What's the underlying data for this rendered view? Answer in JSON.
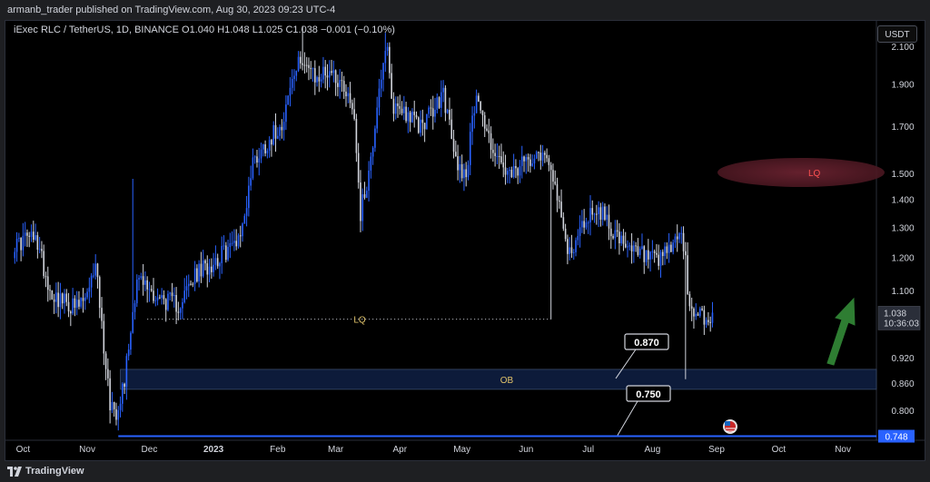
{
  "header": {
    "publisher": "armanb_trader published on TradingView.com, Aug 30, 2023 09:23 UTC-4"
  },
  "symbol_bar": {
    "title": "iExec RLC / TetherUS, 1D, BINANCE",
    "open": "O1.040",
    "high": "H1.048",
    "low": "L1.025",
    "close": "C1.038",
    "change": "−0.001 (−0.10%)"
  },
  "currency_button": "USDT",
  "footer": {
    "brand": "TradingView"
  },
  "price_badge": {
    "price": "1.038",
    "countdown": "10:36:03"
  },
  "colors": {
    "background": "#000000",
    "up_candle": "#2962ff",
    "down_candle": "#d1d4dc",
    "ob_zone": "#0d1b3a",
    "lq_zone": "#5c1f2a",
    "lq_text_red": "#ff5252",
    "annotation_yellow": "#e0c36a",
    "level_line": "#2962ff",
    "arrow": "#2e7d32"
  },
  "annotations": {
    "lq_top_label": "LQ",
    "lq_mid_label": "LQ",
    "ob_label": "OB",
    "callout_870": "0.870",
    "callout_750": "0.750",
    "level_badge": "0.748"
  },
  "chart_data": {
    "type": "candlestick",
    "title": "iExec RLC / TetherUS, 1D, BINANCE",
    "ylim": [
      0.74,
      2.25
    ],
    "yscale": "log",
    "y_ticks": [
      "2.100",
      "1.900",
      "1.700",
      "1.500",
      "1.400",
      "1.300",
      "1.200",
      "1.100",
      "0.920",
      "0.860",
      "0.800"
    ],
    "x_ticks": [
      "Oct",
      "Nov",
      "Dec",
      "2023",
      "Feb",
      "Mar",
      "Apr",
      "May",
      "Jun",
      "Jul",
      "Aug",
      "Sep",
      "Oct",
      "Nov"
    ],
    "x_range": [
      "2022-09-26",
      "2023-11-15"
    ],
    "anchors": [
      [
        "2022-09-26",
        1.23
      ],
      [
        "2022-10-03",
        1.27
      ],
      [
        "2022-10-08",
        1.25
      ],
      [
        "2022-10-14",
        1.1
      ],
      [
        "2022-10-20",
        1.07
      ],
      [
        "2022-10-27",
        1.05
      ],
      [
        "2022-11-02",
        1.09
      ],
      [
        "2022-11-05",
        1.2
      ],
      [
        "2022-11-08",
        1.0
      ],
      [
        "2022-11-12",
        0.82
      ],
      [
        "2022-11-15",
        0.8
      ],
      [
        "2022-11-19",
        0.87
      ],
      [
        "2022-11-25",
        1.14
      ],
      [
        "2022-12-05",
        1.08
      ],
      [
        "2022-12-15",
        1.06
      ],
      [
        "2022-12-24",
        1.15
      ],
      [
        "2023-01-03",
        1.2
      ],
      [
        "2023-01-10",
        1.24
      ],
      [
        "2023-01-15",
        1.3
      ],
      [
        "2023-01-20",
        1.55
      ],
      [
        "2023-01-26",
        1.62
      ],
      [
        "2023-02-03",
        1.72
      ],
      [
        "2023-02-08",
        1.92
      ],
      [
        "2023-02-13",
        2.05
      ],
      [
        "2023-02-19",
        1.92
      ],
      [
        "2023-02-26",
        1.98
      ],
      [
        "2023-03-06",
        1.88
      ],
      [
        "2023-03-10",
        1.75
      ],
      [
        "2023-03-13",
        1.35
      ],
      [
        "2023-03-18",
        1.55
      ],
      [
        "2023-03-22",
        1.9
      ],
      [
        "2023-03-26",
        2.08
      ],
      [
        "2023-03-28",
        1.8
      ],
      [
        "2023-04-03",
        1.78
      ],
      [
        "2023-04-10",
        1.7
      ],
      [
        "2023-04-18",
        1.78
      ],
      [
        "2023-04-22",
        1.86
      ],
      [
        "2023-04-28",
        1.55
      ],
      [
        "2023-05-03",
        1.5
      ],
      [
        "2023-05-08",
        1.88
      ],
      [
        "2023-05-12",
        1.7
      ],
      [
        "2023-05-18",
        1.56
      ],
      [
        "2023-05-24",
        1.48
      ],
      [
        "2023-06-02",
        1.56
      ],
      [
        "2023-06-06",
        1.6
      ],
      [
        "2023-06-13",
        1.55
      ],
      [
        "2023-06-17",
        1.36
      ],
      [
        "2023-06-21",
        1.22
      ],
      [
        "2023-06-25",
        1.25
      ],
      [
        "2023-06-29",
        1.32
      ],
      [
        "2023-07-04",
        1.37
      ],
      [
        "2023-07-09",
        1.34
      ],
      [
        "2023-07-14",
        1.28
      ],
      [
        "2023-07-19",
        1.22
      ],
      [
        "2023-07-24",
        1.22
      ],
      [
        "2023-07-30",
        1.2
      ],
      [
        "2023-08-04",
        1.18
      ],
      [
        "2023-08-08",
        1.22
      ],
      [
        "2023-08-12",
        1.25
      ],
      [
        "2023-08-15",
        1.29
      ],
      [
        "2023-08-17",
        1.18
      ],
      [
        "2023-08-19",
        1.03
      ],
      [
        "2023-08-22",
        1.04
      ],
      [
        "2023-08-25",
        1.04
      ],
      [
        "2023-08-28",
        1.0
      ],
      [
        "2023-08-30",
        1.038
      ]
    ],
    "levels": [
      {
        "name": "LQ",
        "price": 1.02
      },
      {
        "name": "OB",
        "from": 0.847,
        "to": 0.893
      },
      {
        "name": "0.748",
        "price": 0.748
      },
      {
        "name": "LQ",
        "price": 1.46
      }
    ]
  }
}
